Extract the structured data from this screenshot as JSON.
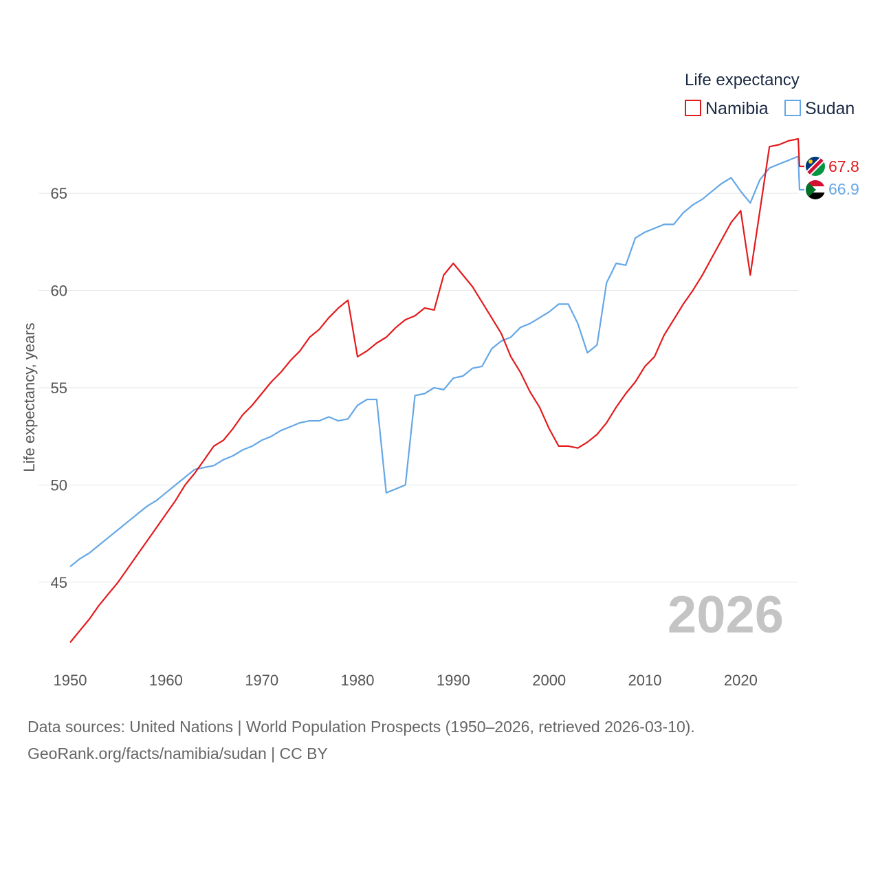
{
  "chart_data": {
    "type": "line",
    "title": "Life expectancy",
    "xlabel": "",
    "ylabel": "Life expectancy, years",
    "xlim": [
      1950,
      2026
    ],
    "ylim": [
      41,
      68.4
    ],
    "x_ticks": [
      1950,
      1960,
      1970,
      1980,
      1990,
      2000,
      2010,
      2020
    ],
    "y_ticks": [
      45,
      50,
      55,
      60,
      65
    ],
    "grid": "horizontal",
    "legend_position": "top-right",
    "current_year_label": "2026",
    "x": [
      1950,
      1951,
      1952,
      1953,
      1954,
      1955,
      1956,
      1957,
      1958,
      1959,
      1960,
      1961,
      1962,
      1963,
      1964,
      1965,
      1966,
      1967,
      1968,
      1969,
      1970,
      1971,
      1972,
      1973,
      1974,
      1975,
      1976,
      1977,
      1978,
      1979,
      1980,
      1981,
      1982,
      1983,
      1984,
      1985,
      1986,
      1987,
      1988,
      1989,
      1990,
      1991,
      1992,
      1993,
      1994,
      1995,
      1996,
      1997,
      1998,
      1999,
      2000,
      2001,
      2002,
      2003,
      2004,
      2005,
      2006,
      2007,
      2008,
      2009,
      2010,
      2011,
      2012,
      2013,
      2014,
      2015,
      2016,
      2017,
      2018,
      2019,
      2020,
      2021,
      2022,
      2023,
      2024,
      2025,
      2026
    ],
    "series": [
      {
        "name": "Namibia",
        "color": "#e31a1c",
        "end_label": "67.8",
        "flag_icon": "namibia-flag-icon",
        "values": [
          41.9,
          42.5,
          43.1,
          43.8,
          44.4,
          45.0,
          45.7,
          46.4,
          47.1,
          47.8,
          48.5,
          49.2,
          50.0,
          50.6,
          51.3,
          52.0,
          52.3,
          52.9,
          53.6,
          54.1,
          54.7,
          55.3,
          55.8,
          56.4,
          56.9,
          57.6,
          58.0,
          58.6,
          59.1,
          59.5,
          56.6,
          56.9,
          57.3,
          57.6,
          58.1,
          58.5,
          58.7,
          59.1,
          59.0,
          60.8,
          61.4,
          60.8,
          60.2,
          59.4,
          58.6,
          57.8,
          56.6,
          55.8,
          54.8,
          54.0,
          52.9,
          52.0,
          52.0,
          51.9,
          52.2,
          52.6,
          53.2,
          54.0,
          54.7,
          55.3,
          56.1,
          56.6,
          57.7,
          58.5,
          59.3,
          60.0,
          60.8,
          61.7,
          62.6,
          63.5,
          64.1,
          60.8,
          64.1,
          67.4,
          67.5,
          67.7,
          67.8
        ]
      },
      {
        "name": "Sudan",
        "color": "#64a7e6",
        "end_label": "66.9",
        "flag_icon": "sudan-flag-icon",
        "values": [
          45.8,
          46.2,
          46.5,
          46.9,
          47.3,
          47.7,
          48.1,
          48.5,
          48.9,
          49.2,
          49.6,
          50.0,
          50.4,
          50.8,
          50.9,
          51.0,
          51.3,
          51.5,
          51.8,
          52.0,
          52.3,
          52.5,
          52.8,
          53.0,
          53.2,
          53.3,
          53.3,
          53.5,
          53.3,
          53.4,
          54.1,
          54.4,
          54.4,
          49.6,
          49.8,
          50.0,
          54.6,
          54.7,
          55.0,
          54.9,
          55.5,
          55.6,
          56.0,
          56.1,
          57.0,
          57.4,
          57.6,
          58.1,
          58.3,
          58.6,
          58.9,
          59.3,
          59.3,
          58.3,
          56.8,
          57.2,
          60.4,
          61.4,
          61.3,
          62.7,
          63.0,
          63.2,
          63.4,
          63.4,
          64.0,
          64.4,
          64.7,
          65.1,
          65.5,
          65.8,
          65.1,
          64.5,
          65.7,
          66.3,
          66.5,
          66.7,
          66.9
        ]
      }
    ]
  },
  "footer": {
    "line1": "Data sources: United Nations | World Population Prospects (1950–2026, retrieved 2026-03-10).",
    "line2": "GeoRank.org/facts/namibia/sudan | CC BY"
  }
}
